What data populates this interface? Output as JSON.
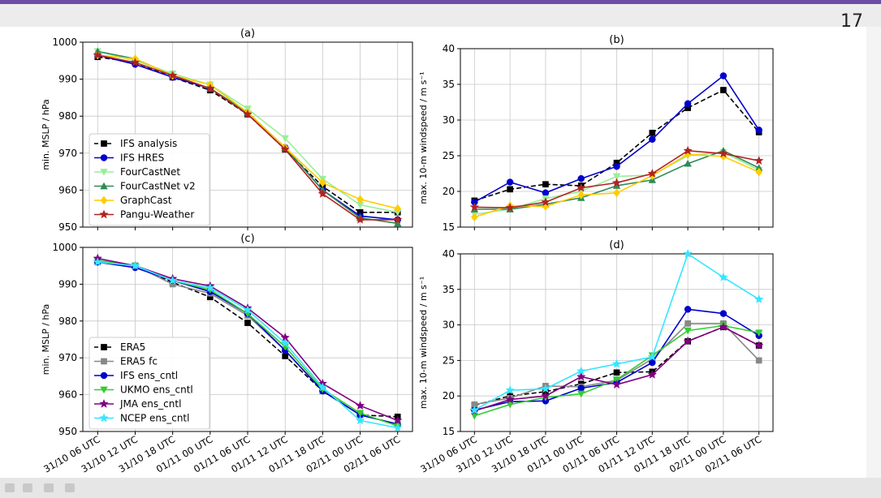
{
  "slide": {
    "page_number": "17"
  },
  "chart_data": [
    {
      "id": "a",
      "type": "line",
      "title": "(a)",
      "ylabel": "min. MSLP / hPa",
      "xlabel": "",
      "ylim": [
        950,
        1000
      ],
      "yticks": [
        950,
        960,
        970,
        980,
        990,
        1000
      ],
      "x": [
        "31/10 06 UTC",
        "31/10 12 UTC",
        "31/10 18 UTC",
        "01/11 00 UTC",
        "01/11 06 UTC",
        "01/11 12 UTC",
        "01/11 18 UTC",
        "02/11 00 UTC",
        "02/11 06 UTC"
      ],
      "show_xticklabels": false,
      "grid": true,
      "legend": "lower-left",
      "series": [
        {
          "name": "IFS analysis",
          "color": "#000000",
          "dash": true,
          "marker": "square",
          "values": [
            996,
            994.5,
            990.5,
            987,
            980.5,
            971,
            961,
            954,
            954
          ]
        },
        {
          "name": "IFS HRES",
          "color": "#0000cc",
          "dash": false,
          "marker": "circle",
          "values": [
            996.5,
            994,
            990.5,
            987.5,
            981,
            971.5,
            960,
            953,
            952
          ]
        },
        {
          "name": "FourCastNet",
          "color": "#99ee99",
          "dash": false,
          "marker": "triangle-down",
          "values": [
            997.5,
            995,
            991.5,
            988.5,
            982,
            974,
            963,
            956,
            954
          ]
        },
        {
          "name": "FourCastNet v2",
          "color": "#2e8b57",
          "dash": false,
          "marker": "triangle-up",
          "values": [
            997.5,
            995.5,
            991,
            987.5,
            981,
            971.5,
            960,
            952.5,
            951
          ]
        },
        {
          "name": "GraphCast",
          "color": "#ffcc00",
          "dash": false,
          "marker": "diamond",
          "values": [
            996.5,
            995.5,
            991,
            988.5,
            981,
            971.5,
            962,
            957.5,
            955
          ]
        },
        {
          "name": "Pangu-Weather",
          "color": "#b22222",
          "dash": false,
          "marker": "star",
          "values": [
            996.5,
            994.5,
            991,
            987.5,
            980.5,
            971,
            959,
            952,
            952
          ]
        }
      ]
    },
    {
      "id": "b",
      "type": "line",
      "title": "(b)",
      "ylabel": "max. 10-m windspeed / m s⁻¹",
      "xlabel": "",
      "ylim": [
        15,
        40
      ],
      "yticks": [
        15,
        20,
        25,
        30,
        35,
        40
      ],
      "x": [
        "31/10 06 UTC",
        "31/10 12 UTC",
        "31/10 18 UTC",
        "01/11 00 UTC",
        "01/11 06 UTC",
        "01/11 12 UTC",
        "01/11 18 UTC",
        "02/11 00 UTC",
        "02/11 06 UTC"
      ],
      "show_xticklabels": false,
      "grid": true,
      "series": [
        {
          "name": "IFS analysis",
          "color": "#000000",
          "dash": true,
          "marker": "square",
          "values": [
            18.7,
            20.3,
            21,
            20.8,
            24,
            28.2,
            31.7,
            34.2,
            28.3
          ]
        },
        {
          "name": "IFS HRES",
          "color": "#0000cc",
          "dash": false,
          "marker": "circle",
          "values": [
            18.5,
            21.3,
            19.8,
            21.8,
            23.5,
            27.3,
            32.3,
            36.2,
            28.6
          ]
        },
        {
          "name": "FourCastNet",
          "color": "#99ee99",
          "dash": false,
          "marker": "triangle-down",
          "values": [
            16.8,
            17.5,
            19,
            20,
            22.1,
            22.3,
            25,
            25.5,
            23
          ]
        },
        {
          "name": "FourCastNet v2",
          "color": "#2e8b57",
          "dash": false,
          "marker": "triangle-up",
          "values": [
            17.5,
            17.5,
            18.2,
            19.1,
            20.8,
            21.6,
            23.9,
            25.7,
            23.3
          ]
        },
        {
          "name": "GraphCast",
          "color": "#ffcc00",
          "dash": false,
          "marker": "diamond",
          "values": [
            16.4,
            18,
            17.9,
            19.5,
            19.8,
            22.2,
            25.2,
            24.9,
            22.7
          ]
        },
        {
          "name": "Pangu-Weather",
          "color": "#b22222",
          "dash": false,
          "marker": "star",
          "values": [
            17.8,
            17.7,
            18.5,
            20.5,
            21.2,
            22.5,
            25.7,
            25.3,
            24.3
          ]
        }
      ]
    },
    {
      "id": "c",
      "type": "line",
      "title": "(c)",
      "ylabel": "min. MSLP / hPa",
      "xlabel": "",
      "ylim": [
        950,
        1000
      ],
      "yticks": [
        950,
        960,
        970,
        980,
        990,
        1000
      ],
      "x": [
        "31/10 06 UTC",
        "31/10 12 UTC",
        "31/10 18 UTC",
        "01/11 00 UTC",
        "01/11 06 UTC",
        "01/11 12 UTC",
        "01/11 18 UTC",
        "02/11 00 UTC",
        "02/11 06 UTC"
      ],
      "show_xticklabels": true,
      "grid": true,
      "legend": "lower-left",
      "series": [
        {
          "name": "ERA5",
          "color": "#000000",
          "dash": true,
          "marker": "square",
          "values": [
            996,
            995,
            990.5,
            986.5,
            979.5,
            970.5,
            961,
            954.5,
            954
          ]
        },
        {
          "name": "ERA5 fc",
          "color": "#888888",
          "dash": false,
          "marker": "square",
          "values": [
            996,
            995,
            990,
            987.5,
            981.5,
            972,
            961,
            954.5,
            952
          ]
        },
        {
          "name": "IFS ens_cntl",
          "color": "#0000cc",
          "dash": false,
          "marker": "circle",
          "values": [
            996,
            994.5,
            991,
            988,
            982,
            972,
            961,
            954.5,
            952
          ]
        },
        {
          "name": "UKMO ens_cntl",
          "color": "#33cc33",
          "dash": false,
          "marker": "triangle-down",
          "values": [
            996.5,
            995,
            991,
            988.5,
            982,
            973,
            961.5,
            955,
            951.5
          ]
        },
        {
          "name": "JMA ens_cntl",
          "color": "#800080",
          "dash": false,
          "marker": "star",
          "values": [
            997,
            995,
            991.5,
            989.5,
            983.5,
            975.5,
            963,
            957,
            953
          ]
        },
        {
          "name": "NCEP ens_cntl",
          "color": "#33e6ff",
          "dash": false,
          "marker": "star",
          "values": [
            996,
            995,
            991,
            989,
            983,
            974,
            962,
            953,
            951
          ]
        }
      ]
    },
    {
      "id": "d",
      "type": "line",
      "title": "(d)",
      "ylabel": "max. 10-m windspeed / m s⁻¹",
      "xlabel": "",
      "ylim": [
        15,
        40
      ],
      "yticks": [
        15,
        20,
        25,
        30,
        35,
        40
      ],
      "x": [
        "31/10 06 UTC",
        "31/10 12 UTC",
        "31/10 18 UTC",
        "01/11 00 UTC",
        "01/11 06 UTC",
        "01/11 12 UTC",
        "01/11 18 UTC",
        "02/11 00 UTC",
        "02/11 06 UTC"
      ],
      "show_xticklabels": true,
      "grid": true,
      "series": [
        {
          "name": "ERA5",
          "color": "#000000",
          "dash": true,
          "marker": "square",
          "values": [
            18.7,
            20,
            20.6,
            21.7,
            23.3,
            23.4,
            27.7,
            29.7,
            27.1
          ]
        },
        {
          "name": "ERA5 fc",
          "color": "#888888",
          "dash": false,
          "marker": "square",
          "values": [
            18.8,
            19.7,
            21.4,
            21.3,
            22.2,
            25.2,
            30.2,
            30.2,
            25
          ]
        },
        {
          "name": "IFS ens_cntl",
          "color": "#0000cc",
          "dash": false,
          "marker": "circle",
          "values": [
            18,
            19.2,
            19.3,
            21.1,
            21.9,
            24.7,
            32.2,
            31.6,
            28.5
          ]
        },
        {
          "name": "UKMO ens_cntl",
          "color": "#33cc33",
          "dash": false,
          "marker": "triangle-down",
          "values": [
            17.2,
            18.8,
            19.8,
            20.3,
            22.3,
            25.7,
            29.2,
            29.9,
            28.9
          ]
        },
        {
          "name": "JMA ens_cntl",
          "color": "#800080",
          "dash": false,
          "marker": "star",
          "values": [
            17.9,
            19.5,
            20,
            22.7,
            21.6,
            23,
            27.7,
            29.7,
            27.1
          ]
        },
        {
          "name": "NCEP ens_cntl",
          "color": "#33e6ff",
          "dash": false,
          "marker": "star",
          "values": [
            18,
            20.8,
            21,
            23.5,
            24.5,
            25.5,
            40,
            36.7,
            33.6
          ]
        }
      ]
    }
  ]
}
